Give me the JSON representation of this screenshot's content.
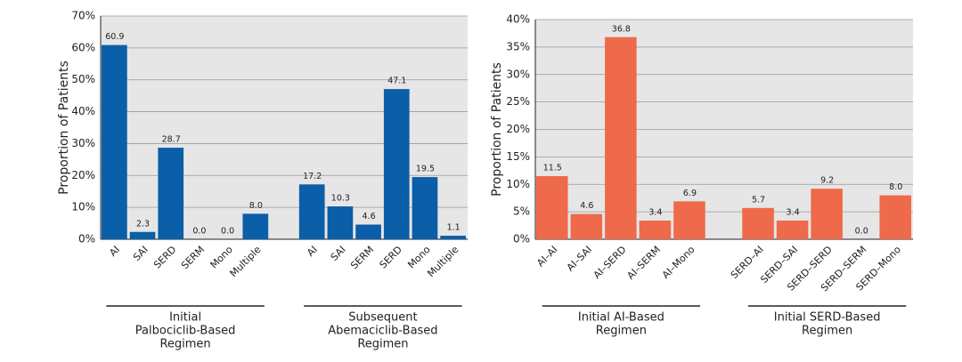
{
  "chart_data": [
    {
      "type": "bar",
      "ylabel": "Proportion of Patients",
      "color": "#0b5ea8",
      "grid": true,
      "ylim": [
        0,
        70
      ],
      "yticks": [
        {
          "value": 0,
          "label": "0%"
        },
        {
          "value": 10,
          "label": "10%"
        },
        {
          "value": 20,
          "label": "20%"
        },
        {
          "value": 30,
          "label": "30%"
        },
        {
          "value": 40,
          "label": "40%"
        },
        {
          "value": 50,
          "label": "50%"
        },
        {
          "value": 60,
          "label": "60%"
        },
        {
          "value": 70,
          "label": "70%"
        }
      ],
      "groups": [
        {
          "label": [
            "Initial",
            "Palbociclib-Based",
            "Regimen"
          ],
          "categories": [
            "AI",
            "SAI",
            "SERD",
            "SERM",
            "Mono",
            "Multiple"
          ],
          "values": [
            60.9,
            2.3,
            28.7,
            0,
            0,
            8
          ],
          "value_labels": [
            "60.9",
            "2.3",
            "28.7",
            "0.0",
            "0.0",
            "8.0"
          ]
        },
        {
          "label": [
            "Subsequent",
            "Abemaciclib-Based",
            "Regimen"
          ],
          "categories": [
            "AI",
            "SAI",
            "SERM",
            "SERD",
            "Mono",
            "Multiple"
          ],
          "values": [
            17.2,
            10.3,
            4.6,
            47.1,
            19.5,
            1.1
          ],
          "value_labels": [
            "17.2",
            "10.3",
            "4.6",
            "47.1",
            "19.5",
            "1.1"
          ]
        }
      ]
    },
    {
      "type": "bar",
      "ylabel": "Proportion of Patients",
      "color": "#ee6a4b",
      "grid": true,
      "ylim": [
        0,
        40
      ],
      "yticks": [
        {
          "value": 0,
          "label": "0%"
        },
        {
          "value": 5,
          "label": "5%"
        },
        {
          "value": 10,
          "label": "10%"
        },
        {
          "value": 15,
          "label": "15%"
        },
        {
          "value": 20,
          "label": "20%"
        },
        {
          "value": 25,
          "label": "25%"
        },
        {
          "value": 30,
          "label": "30%"
        },
        {
          "value": 35,
          "label": "35%"
        },
        {
          "value": 40,
          "label": "40%"
        }
      ],
      "groups": [
        {
          "label": [
            "Initial AI-Based",
            "Regimen"
          ],
          "categories": [
            "AI–AI",
            "AI–SAI",
            "AI–SERD",
            "AI–SERM",
            "AI–Mono"
          ],
          "values": [
            11.5,
            4.6,
            36.8,
            3.4,
            6.9
          ],
          "value_labels": [
            "11.5",
            "4.6",
            "36.8",
            "3.4",
            "6.9"
          ]
        },
        {
          "label": [
            "Initial SERD-Based",
            "Regimen"
          ],
          "categories": [
            "SERD–AI",
            "SERD–SAI",
            "SERD–SERD",
            "SERD–SERM",
            "SERD–Mono"
          ],
          "values": [
            5.7,
            3.4,
            9.2,
            0,
            8
          ],
          "value_labels": [
            "5.7",
            "3.4",
            "9.2",
            "0.0",
            "8.0"
          ]
        }
      ]
    }
  ]
}
